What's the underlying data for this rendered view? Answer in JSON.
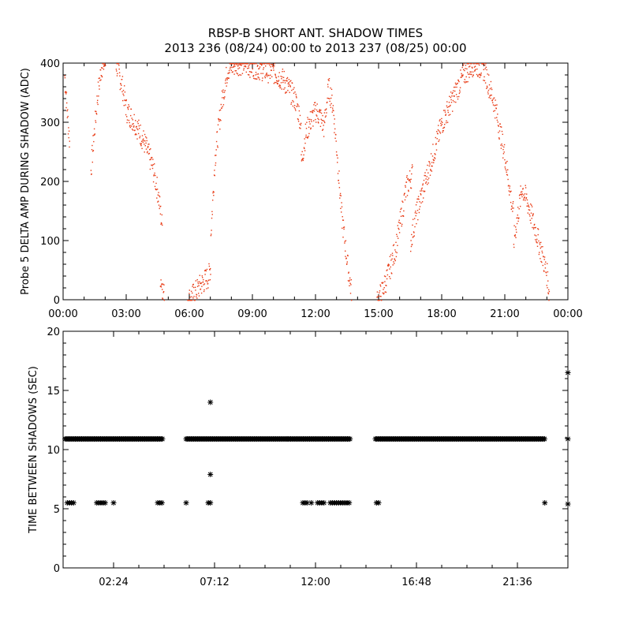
{
  "figure": {
    "title_line1": "RBSP-B SHORT ANT. SHADOW TIMES",
    "title_line2": "2013 236 (08/24) 00:00 to 2013 237 (08/25) 00:00"
  },
  "colors": {
    "top_marks": "#e83a14",
    "bottom_marks": "#000000",
    "axes": "#000000"
  },
  "chart_data": [
    {
      "type": "scatter",
      "ylabel": "Probe 5 DELTA AMP DURING SHADOW (ADC)",
      "xlabel": "",
      "xlim": [
        0,
        24
      ],
      "ylim": [
        0,
        400
      ],
      "xticks": [
        0,
        3,
        6,
        9,
        12,
        15,
        18,
        21,
        24
      ],
      "xtick_labels": [
        "00:00",
        "03:00",
        "06:00",
        "09:00",
        "12:00",
        "15:00",
        "18:00",
        "21:00",
        "00:00"
      ],
      "yticks": [
        0,
        100,
        200,
        300,
        400
      ],
      "ytick_labels": [
        "0",
        "100",
        "200",
        "300",
        "400"
      ],
      "marker": "dot",
      "color": "#e83a14",
      "segments": [
        {
          "x": [
            0.05,
            0.15,
            0.3
          ],
          "y": [
            380,
            330,
            260
          ]
        },
        {
          "x": [
            1.3,
            1.6,
            1.8,
            2.0
          ],
          "y": [
            220,
            340,
            395,
            400
          ]
        },
        {
          "x": [
            2.5,
            2.8,
            3.0,
            3.4,
            3.8,
            4.2,
            4.5,
            4.7
          ],
          "y": [
            400,
            360,
            320,
            300,
            270,
            230,
            180,
            120
          ]
        },
        {
          "x": [
            4.6,
            4.8
          ],
          "y": [
            40,
            5
          ]
        },
        {
          "x": [
            5.9,
            6.2,
            6.5,
            6.9,
            7.0
          ],
          "y": [
            0,
            10,
            25,
            40,
            60
          ]
        },
        {
          "x": [
            7.0,
            7.2,
            7.5,
            7.8,
            8.2,
            8.6,
            9.0,
            9.5,
            10.0,
            10.5,
            11.0,
            11.3
          ],
          "y": [
            110,
            240,
            330,
            390,
            400,
            400,
            395,
            390,
            385,
            370,
            340,
            300
          ]
        },
        {
          "x": [
            11.3,
            11.5,
            11.7,
            12.0,
            12.2,
            12.4
          ],
          "y": [
            230,
            280,
            300,
            320,
            310,
            290
          ]
        },
        {
          "x": [
            12.4,
            12.6,
            12.8,
            13.0,
            13.2,
            13.5,
            13.7
          ],
          "y": [
            300,
            360,
            330,
            250,
            150,
            60,
            10
          ]
        },
        {
          "x": [
            14.9,
            15.1,
            15.4,
            15.8,
            16.1,
            16.3,
            16.6
          ],
          "y": [
            0,
            10,
            40,
            90,
            150,
            190,
            215
          ]
        },
        {
          "x": [
            16.5,
            16.8,
            17.2,
            17.6,
            18.0,
            18.5,
            19.0,
            19.5,
            20.0,
            20.5,
            21.0,
            21.4
          ],
          "y": [
            100,
            150,
            200,
            250,
            300,
            340,
            380,
            400,
            390,
            330,
            240,
            140
          ]
        },
        {
          "x": [
            21.4,
            21.8,
            22.1,
            22.5,
            22.8,
            23.0,
            23.1
          ],
          "y": [
            100,
            190,
            160,
            110,
            70,
            40,
            5
          ]
        }
      ]
    },
    {
      "type": "scatter",
      "ylabel": "TIME BETWEEN SHADOWS (SEC)",
      "xlabel": "",
      "xlim": [
        0,
        24
      ],
      "ylim": [
        0,
        20
      ],
      "xticks": [
        2.4,
        7.2,
        12.0,
        16.8,
        21.6
      ],
      "xtick_labels": [
        "02:24",
        "07:12",
        "12:00",
        "16:48",
        "21:36"
      ],
      "yticks": [
        0,
        5,
        10,
        15,
        20
      ],
      "ytick_labels": [
        "0",
        "5",
        "10",
        "15",
        "20"
      ],
      "marker": "asterisk",
      "color": "#000000",
      "bands": [
        {
          "y": 10.9,
          "x_ranges": [
            [
              0.1,
              4.75
            ],
            [
              5.85,
              10.7
            ],
            [
              10.7,
              13.65
            ],
            [
              14.85,
              22.9
            ]
          ]
        }
      ],
      "points": [
        {
          "x": 0.2,
          "y": 5.5
        },
        {
          "x": 0.3,
          "y": 5.5
        },
        {
          "x": 0.4,
          "y": 5.5
        },
        {
          "x": 0.5,
          "y": 5.5
        },
        {
          "x": 1.6,
          "y": 5.5
        },
        {
          "x": 1.7,
          "y": 5.5
        },
        {
          "x": 1.8,
          "y": 5.5
        },
        {
          "x": 1.9,
          "y": 5.5
        },
        {
          "x": 2.0,
          "y": 5.5
        },
        {
          "x": 2.4,
          "y": 5.5
        },
        {
          "x": 4.5,
          "y": 5.5
        },
        {
          "x": 4.6,
          "y": 5.5
        },
        {
          "x": 4.7,
          "y": 5.5
        },
        {
          "x": 5.85,
          "y": 5.5
        },
        {
          "x": 6.9,
          "y": 5.5
        },
        {
          "x": 7.0,
          "y": 5.5
        },
        {
          "x": 7.0,
          "y": 7.9
        },
        {
          "x": 7.0,
          "y": 14.0
        },
        {
          "x": 11.4,
          "y": 5.5
        },
        {
          "x": 11.5,
          "y": 5.5
        },
        {
          "x": 11.6,
          "y": 5.5
        },
        {
          "x": 11.8,
          "y": 5.5
        },
        {
          "x": 12.1,
          "y": 5.5
        },
        {
          "x": 12.2,
          "y": 5.5
        },
        {
          "x": 12.3,
          "y": 5.5
        },
        {
          "x": 12.4,
          "y": 5.5
        },
        {
          "x": 12.7,
          "y": 5.5
        },
        {
          "x": 12.8,
          "y": 5.5
        },
        {
          "x": 12.9,
          "y": 5.5
        },
        {
          "x": 13.0,
          "y": 5.5
        },
        {
          "x": 13.1,
          "y": 5.5
        },
        {
          "x": 13.2,
          "y": 5.5
        },
        {
          "x": 13.3,
          "y": 5.5
        },
        {
          "x": 13.4,
          "y": 5.5
        },
        {
          "x": 13.5,
          "y": 5.5
        },
        {
          "x": 13.6,
          "y": 5.5
        },
        {
          "x": 14.9,
          "y": 5.5
        },
        {
          "x": 15.0,
          "y": 5.5
        },
        {
          "x": 22.9,
          "y": 5.5
        },
        {
          "x": 24.0,
          "y": 5.4
        },
        {
          "x": 24.0,
          "y": 10.9
        },
        {
          "x": 24.0,
          "y": 16.5
        }
      ]
    }
  ]
}
